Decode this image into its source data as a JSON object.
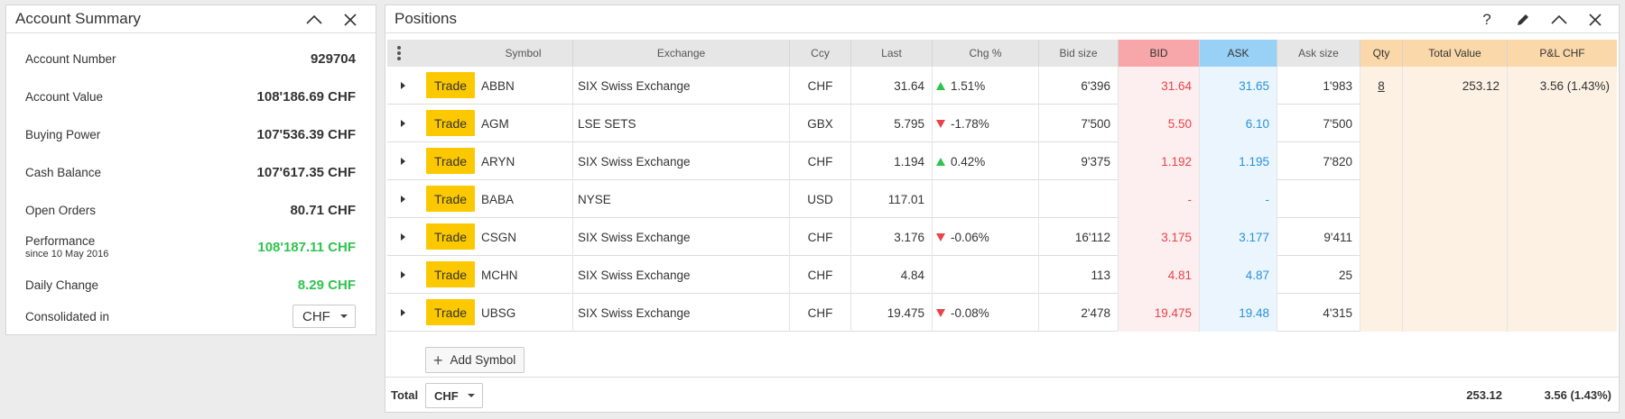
{
  "account_summary": {
    "title": "Account Summary",
    "rows": [
      {
        "label": "Account Number",
        "value": "929704",
        "sub": ""
      },
      {
        "label": "Account Value",
        "value": "108'186.69 CHF",
        "sub": ""
      },
      {
        "label": "Buying Power",
        "value": "107'536.39 CHF",
        "sub": ""
      },
      {
        "label": "Cash Balance",
        "value": "107'617.35 CHF",
        "sub": ""
      },
      {
        "label": "Open Orders",
        "value": "80.71 CHF",
        "sub": ""
      },
      {
        "label": "Performance",
        "value": "108'187.11 CHF",
        "sub": "since 10 May 2016"
      },
      {
        "label": "Daily Change",
        "value": "8.29 CHF",
        "sub": ""
      }
    ],
    "consolidated_label": "Consolidated in",
    "consolidated_value": "CHF",
    "positive_color": "#2ec44d"
  },
  "positions": {
    "title": "Positions",
    "header_icons": [
      "help-icon",
      "edit-icon",
      "collapse-icon",
      "close-icon"
    ],
    "help_glyph": "?",
    "columns": {
      "symbol": "Symbol",
      "exchange": "Exchange",
      "ccy": "Ccy",
      "last": "Last",
      "chg": "Chg %",
      "bid_size": "Bid size",
      "bid": "BID",
      "ask": "ASK",
      "ask_size": "Ask size",
      "qty": "Qty",
      "total_value": "Total Value",
      "pnl": "P&L CHF"
    },
    "trade_label": "Trade",
    "rows": [
      {
        "symbol": "ABBN",
        "exchange": "SIX Swiss Exchange",
        "ccy": "CHF",
        "last": "31.64",
        "chg": "1.51%",
        "dir": "up",
        "bid_size": "6'396",
        "bid": "31.64",
        "ask": "31.65",
        "ask_size": "1'983",
        "qty": "8",
        "total_value": "253.12",
        "pnl": "3.56 (1.43%)"
      },
      {
        "symbol": "AGM",
        "exchange": "LSE SETS",
        "ccy": "GBX",
        "last": "5.795",
        "chg": "-1.78%",
        "dir": "down",
        "bid_size": "7'500",
        "bid": "5.50",
        "ask": "6.10",
        "ask_size": "7'500",
        "qty": "",
        "total_value": "",
        "pnl": ""
      },
      {
        "symbol": "ARYN",
        "exchange": "SIX Swiss Exchange",
        "ccy": "CHF",
        "last": "1.194",
        "chg": "0.42%",
        "dir": "up",
        "bid_size": "9'375",
        "bid": "1.192",
        "ask": "1.195",
        "ask_size": "7'820",
        "qty": "",
        "total_value": "",
        "pnl": ""
      },
      {
        "symbol": "BABA",
        "exchange": "NYSE",
        "ccy": "USD",
        "last": "117.01",
        "chg": "",
        "dir": "",
        "bid_size": "",
        "bid": "-",
        "ask": "-",
        "ask_size": "",
        "qty": "",
        "total_value": "",
        "pnl": ""
      },
      {
        "symbol": "CSGN",
        "exchange": "SIX Swiss Exchange",
        "ccy": "CHF",
        "last": "3.176",
        "chg": "-0.06%",
        "dir": "down",
        "bid_size": "16'112",
        "bid": "3.175",
        "ask": "3.177",
        "ask_size": "9'411",
        "qty": "",
        "total_value": "",
        "pnl": ""
      },
      {
        "symbol": "MCHN",
        "exchange": "SIX Swiss Exchange",
        "ccy": "CHF",
        "last": "4.84",
        "chg": "",
        "dir": "",
        "bid_size": "113",
        "bid": "4.81",
        "ask": "4.87",
        "ask_size": "25",
        "qty": "",
        "total_value": "",
        "pnl": ""
      },
      {
        "symbol": "UBSG",
        "exchange": "SIX Swiss Exchange",
        "ccy": "CHF",
        "last": "19.475",
        "chg": "-0.08%",
        "dir": "down",
        "bid_size": "2'478",
        "bid": "19.475",
        "ask": "19.48",
        "ask_size": "4'315",
        "qty": "",
        "total_value": "",
        "pnl": ""
      }
    ],
    "add_symbol_label": "Add Symbol",
    "total_label": "Total",
    "total_currency": "CHF",
    "total_value": "253.12",
    "total_pnl": "3.56 (1.43%)",
    "colors": {
      "bid_header": "#f7a7aa",
      "ask_header": "#98d1f5",
      "qty_header": "#fbd8a9",
      "trade_button": "#fcc800",
      "bid_text": "#e8434a",
      "ask_text": "#2a92dc"
    }
  }
}
